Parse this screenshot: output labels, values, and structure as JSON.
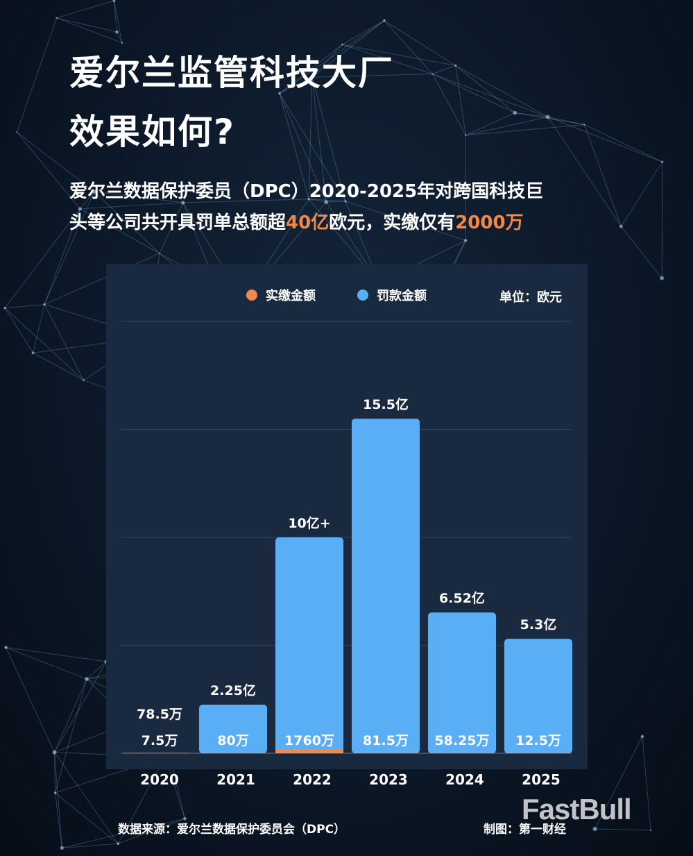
{
  "header": {
    "title_line1": "爱尔兰监管科技大厂",
    "title_line2": "效果如何?",
    "subtitle_line1": "爱尔兰数据保护委员（DPC）2020-2025年对跨国科技巨",
    "subtitle_line2_part1": "头等公司共开具罚单总额超",
    "subtitle_line2_hl1": "40亿",
    "subtitle_line2_part2": "欧元，实缴仅有",
    "subtitle_line2_hl2": "2000万"
  },
  "legend": {
    "paid_label": "实缴金额",
    "fine_label": "罚款金额",
    "unit_label": "单位：欧元"
  },
  "colors": {
    "fine": "#5aaef5",
    "paid": "#f08a4b",
    "panel": "#182940",
    "highlight": "#f08a4b"
  },
  "chart_data": {
    "type": "bar",
    "categories": [
      "2020",
      "2021",
      "2022",
      "2023",
      "2024",
      "2025"
    ],
    "series": [
      {
        "name": "罚款金额",
        "values": [
          785000,
          225000000,
          1000000000,
          1550000000,
          652000000,
          530000000
        ],
        "labels": [
          "78.5万",
          "2.25亿",
          "10亿+",
          "15.5亿",
          "6.52亿",
          "5.3亿"
        ]
      },
      {
        "name": "实缴金额",
        "values": [
          75000,
          800000,
          17600000,
          815000,
          582500,
          125000
        ],
        "labels": [
          "7.5万",
          "80万",
          "1760万",
          "81.5万",
          "58.25万",
          "12.5万"
        ]
      }
    ],
    "ylim": [
      0,
      2000000000
    ],
    "grid": true,
    "legend_position": "top"
  },
  "footer": {
    "source": "数据来源：爱尔兰数据保护委员会（DPC）",
    "credit": "制图：第一财经"
  },
  "watermark": "FastBull"
}
